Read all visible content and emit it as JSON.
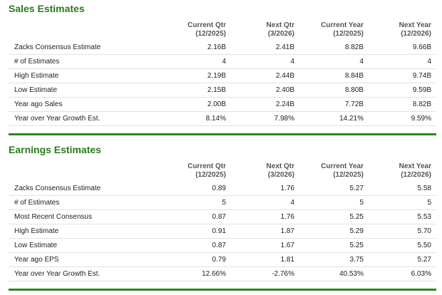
{
  "sales": {
    "title": "Sales Estimates",
    "headers": [
      {
        "name": "Current Qtr",
        "period": "(12/2025)"
      },
      {
        "name": "Next Qtr",
        "period": "(3/2026)"
      },
      {
        "name": "Current Year",
        "period": "(12/2025)"
      },
      {
        "name": "Next Year",
        "period": "(12/2026)"
      }
    ],
    "rows": [
      {
        "label": "Zacks Consensus Estimate",
        "values": [
          "2.16B",
          "2.41B",
          "8.82B",
          "9.66B"
        ]
      },
      {
        "label": "# of Estimates",
        "values": [
          "4",
          "4",
          "4",
          "4"
        ]
      },
      {
        "label": "High Estimate",
        "values": [
          "2.19B",
          "2.44B",
          "8.84B",
          "9.74B"
        ]
      },
      {
        "label": "Low Estimate",
        "values": [
          "2.15B",
          "2.40B",
          "8.80B",
          "9.59B"
        ]
      },
      {
        "label": "Year ago Sales",
        "values": [
          "2.00B",
          "2.24B",
          "7.72B",
          "8.82B"
        ]
      },
      {
        "label": "Year over Year Growth Est.",
        "values": [
          "8.14%",
          "7.98%",
          "14.21%",
          "9.59%"
        ]
      }
    ]
  },
  "earnings": {
    "title": "Earnings Estimates",
    "headers": [
      {
        "name": "Current Qtr",
        "period": "(12/2025)"
      },
      {
        "name": "Next Qtr",
        "period": "(3/2026)"
      },
      {
        "name": "Current Year",
        "period": "(12/2025)"
      },
      {
        "name": "Next Year",
        "period": "(12/2026)"
      }
    ],
    "rows": [
      {
        "label": "Zacks Consensus Estimate",
        "values": [
          "0.89",
          "1.76",
          "5.27",
          "5.58"
        ]
      },
      {
        "label": "# of Estimates",
        "values": [
          "5",
          "4",
          "5",
          "5"
        ]
      },
      {
        "label": "Most Recent Consensus",
        "values": [
          "0.87",
          "1.76",
          "5.25",
          "5.53"
        ]
      },
      {
        "label": "High Estimate",
        "values": [
          "0.91",
          "1.87",
          "5.29",
          "5.70"
        ]
      },
      {
        "label": "Low Estimate",
        "values": [
          "0.87",
          "1.67",
          "5.25",
          "5.50"
        ]
      },
      {
        "label": "Year ago EPS",
        "values": [
          "0.79",
          "1.81",
          "3.75",
          "5.27"
        ]
      },
      {
        "label": "Year over Year Growth Est.",
        "values": [
          "12.66%",
          "-2.76%",
          "40.53%",
          "6.03%"
        ]
      }
    ]
  }
}
